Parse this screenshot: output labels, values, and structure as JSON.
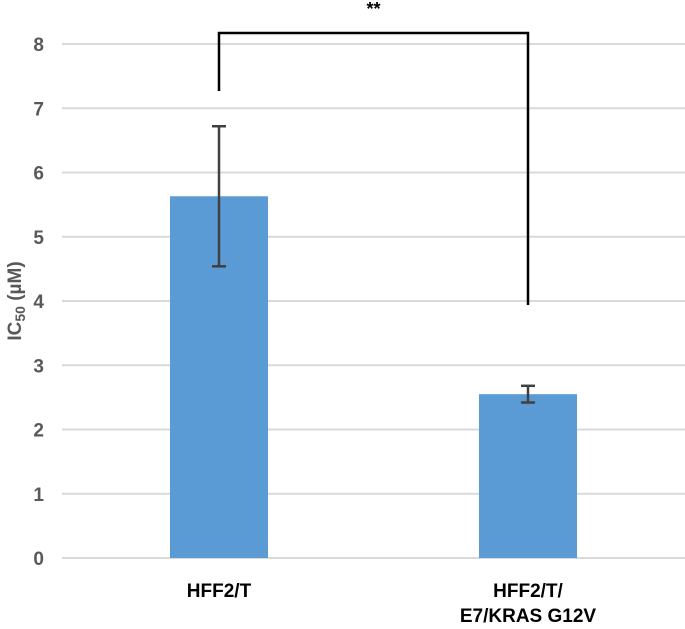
{
  "chart_data": {
    "type": "bar",
    "title": "",
    "xlabel": "",
    "ylabel": "IC50 (µM)",
    "ylabel_parts": {
      "main": "IC",
      "sub": "50",
      "unit": " (µM)"
    },
    "ylim": [
      0,
      8
    ],
    "yticks": [
      0,
      1,
      2,
      3,
      4,
      5,
      6,
      7,
      8
    ],
    "grid": true,
    "categories": [
      {
        "lines": [
          "HFF2/T"
        ]
      },
      {
        "lines": [
          "HFF2/T/",
          "E7/KRAS G12V"
        ]
      }
    ],
    "values": [
      5.63,
      2.55
    ],
    "errors": [
      1.09,
      0.13
    ],
    "significance": {
      "label": "**",
      "between": [
        0,
        1
      ]
    },
    "colors": {
      "bar": "#5B9BD5",
      "grid": "#D9D9D9",
      "error": "#404040",
      "bracket": "#000000"
    }
  }
}
